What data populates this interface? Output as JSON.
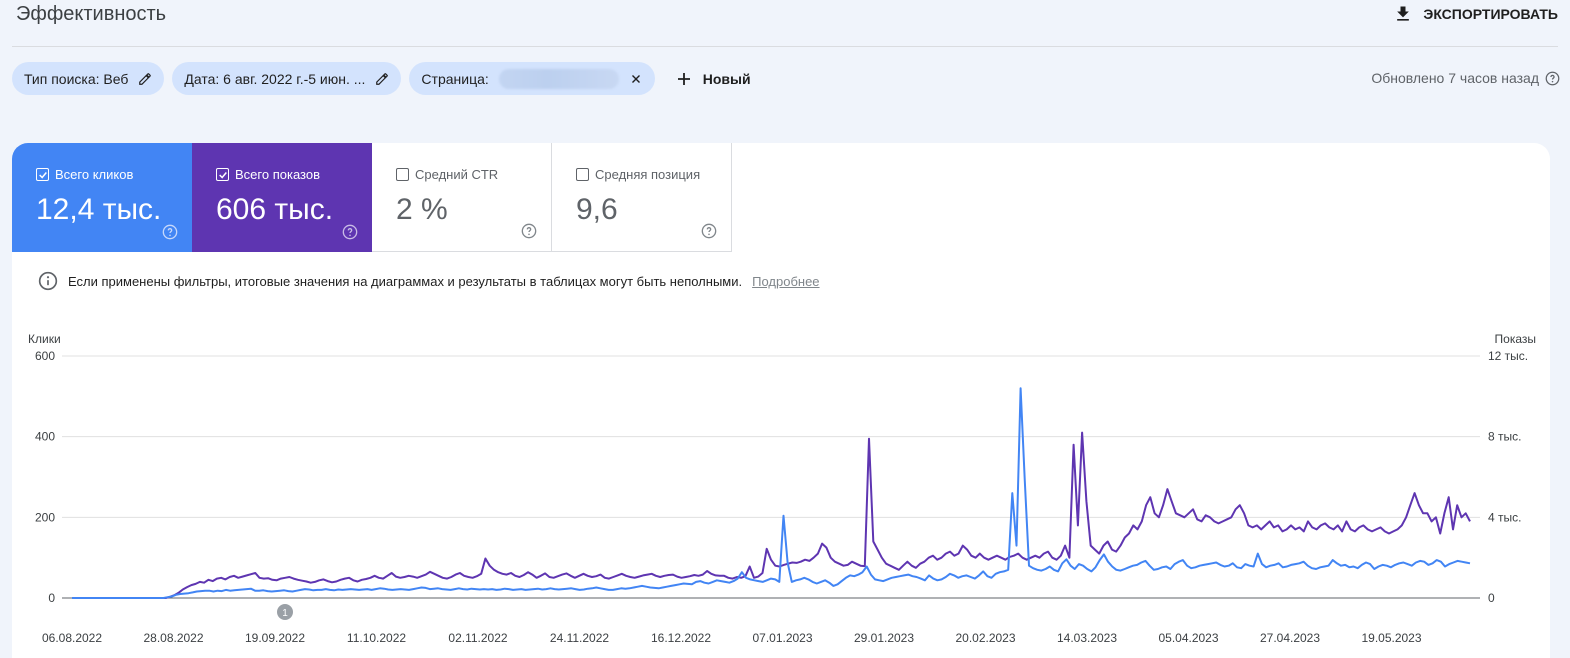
{
  "header": {
    "title": "Эффективность",
    "export_label": "ЭКСПОРТИРОВАТЬ"
  },
  "filters": {
    "search_type": "Тип поиска: Веб",
    "date": "Дата: 6 авг. 2022 г.-5 июн. ...",
    "page": "Страница:",
    "new_label": "Новый",
    "updated": "Обновлено 7 часов назад"
  },
  "metrics": [
    {
      "label": "Всего кликов",
      "value": "12,4 тыс.",
      "checked": true,
      "color": "#4285f4"
    },
    {
      "label": "Всего показов",
      "value": "606 тыс.",
      "checked": true,
      "color": "#5e35b1"
    },
    {
      "label": "Средний CTR",
      "value": "2 %",
      "checked": false
    },
    {
      "label": "Средняя позиция",
      "value": "9,6",
      "checked": false
    }
  ],
  "notice": {
    "text": "Если применены фильтры, итоговые значения на диаграммах и результаты в таблицах могут быть неполными.",
    "link": "Подробнее"
  },
  "chart_data": {
    "type": "line",
    "y_left_label": "Клики",
    "y_right_label": "Показы",
    "y_left_ticks": [
      "600",
      "400",
      "200",
      "0"
    ],
    "y_right_ticks": [
      "12 тыс.",
      "8 тыс.",
      "4 тыс.",
      "0"
    ],
    "ylim_left": [
      0,
      600
    ],
    "ylim_right": [
      0,
      12000
    ],
    "x_ticks": [
      "06.08.2022",
      "28.08.2022",
      "19.09.2022",
      "11.10.2022",
      "02.11.2022",
      "24.11.2022",
      "16.12.2022",
      "07.01.2023",
      "29.01.2023",
      "20.02.2023",
      "14.03.2023",
      "05.04.2023",
      "27.04.2023",
      "19.05.2023"
    ],
    "annotation": "1",
    "series": [
      {
        "name": "Всего кликов",
        "color": "#4285f4",
        "axis": "left",
        "values": [
          0,
          0,
          0,
          0,
          0,
          0,
          0,
          0,
          0,
          0,
          0,
          0,
          0,
          0,
          0,
          0,
          0,
          0,
          0,
          0,
          0,
          0,
          0,
          2,
          4,
          8,
          10,
          11,
          12,
          14,
          16,
          17,
          18,
          18,
          16,
          18,
          17,
          20,
          18,
          19,
          20,
          21,
          22,
          23,
          18,
          18,
          19,
          17,
          16,
          17,
          18,
          19,
          17,
          16,
          18,
          20,
          22,
          21,
          19,
          20,
          20,
          22,
          20,
          19,
          21,
          20,
          21,
          22,
          21,
          20,
          21,
          22,
          20,
          22,
          24,
          23,
          21,
          20,
          21,
          22,
          21,
          20,
          22,
          24,
          26,
          25,
          22,
          23,
          24,
          22,
          21,
          20,
          22,
          24,
          22,
          21,
          23,
          22,
          21,
          22,
          21,
          22,
          20,
          21,
          23,
          22,
          20,
          21,
          22,
          20,
          21,
          22,
          23,
          21,
          22,
          24,
          22,
          21,
          22,
          23,
          24,
          22,
          20,
          21,
          23,
          24,
          26,
          24,
          22,
          20,
          20,
          22,
          24,
          23,
          24,
          26,
          28,
          30,
          28,
          26,
          25,
          24,
          26,
          28,
          30,
          32,
          34,
          36,
          35,
          34,
          40,
          42,
          38,
          36,
          40,
          44,
          42,
          40,
          38,
          42,
          48,
          64,
          50,
          46,
          44,
          42,
          40,
          44,
          48,
          46,
          40,
          204,
          88,
          40,
          44,
          46,
          50,
          46,
          40,
          36,
          40,
          44,
          38,
          30,
          34,
          42,
          50,
          56,
          54,
          58,
          64,
          78,
          58,
          46,
          44,
          42,
          46,
          50,
          52,
          54,
          56,
          58,
          54,
          52,
          48,
          44,
          56,
          48,
          44,
          46,
          52,
          60,
          56,
          50,
          54,
          56,
          52,
          48,
          56,
          66,
          54,
          50,
          60,
          64,
          66,
          70,
          260,
          130,
          520,
          290,
          80,
          74,
          70,
          68,
          72,
          78,
          70,
          66,
          86,
          96,
          80,
          72,
          84,
          80,
          72,
          66,
          76,
          94,
          108,
          90,
          78,
          70,
          68,
          72,
          76,
          80,
          82,
          88,
          92,
          80,
          70,
          72,
          76,
          78,
          72,
          84,
          90,
          94,
          80,
          74,
          76,
          80,
          82,
          84,
          86,
          88,
          82,
          78,
          80,
          86,
          76,
          74,
          84,
          80,
          78,
          110,
          84,
          76,
          80,
          82,
          86,
          76,
          78,
          82,
          84,
          86,
          90,
          80,
          74,
          72,
          76,
          78,
          80,
          94,
          86,
          80,
          82,
          76,
          78,
          74,
          82,
          88,
          84,
          72,
          78,
          82,
          80,
          76,
          82,
          86,
          88,
          84,
          80,
          88,
          92,
          90,
          82,
          86,
          94,
          90,
          78,
          84,
          88,
          92,
          90,
          88,
          86
        ]
      },
      {
        "name": "Всего показов",
        "color": "#5e35b1",
        "axis": "right",
        "values": [
          0,
          0,
          0,
          0,
          0,
          0,
          0,
          0,
          0,
          0,
          0,
          0,
          0,
          0,
          0,
          0,
          0,
          0,
          0,
          0,
          0,
          0,
          0,
          60,
          140,
          260,
          420,
          540,
          640,
          700,
          800,
          760,
          900,
          840,
          960,
          1000,
          920,
          1040,
          1100,
          1000,
          1060,
          1120,
          1180,
          1240,
          1000,
          960,
          980,
          900,
          880,
          960,
          1000,
          1040,
          960,
          900,
          860,
          820,
          760,
          800,
          880,
          920,
          840,
          780,
          820,
          900,
          960,
          1000,
          880,
          820,
          900,
          940,
          1000,
          1100,
          1000,
          960,
          1100,
          1240,
          1060,
          1000,
          1040,
          1100,
          1060,
          1000,
          1080,
          1160,
          1300,
          1200,
          1100,
          1000,
          960,
          1040,
          1160,
          1240,
          1100,
          1040,
          1000,
          1080,
          1200,
          1960,
          1600,
          1400,
          1280,
          1200,
          1160,
          1240,
          1100,
          1040,
          1140,
          1280,
          1160,
          1000,
          1100,
          1220,
          1040,
          1000,
          1080,
          1160,
          1220,
          1100,
          1000,
          1100,
          1200,
          1100,
          1040,
          1080,
          1160,
          1000,
          960,
          1040,
          1120,
          1200,
          1100,
          1040,
          1000,
          1060,
          1120,
          1160,
          1200,
          1100,
          1040,
          1100,
          1140,
          1160,
          1060,
          1000,
          1040,
          1080,
          1140,
          1100,
          1160,
          1340,
          1200,
          1120,
          1100,
          1100,
          1000,
          960,
          1040,
          1000,
          1080,
          1560,
          1000,
          1060,
          1240,
          2440,
          1900,
          1600,
          1560,
          1640,
          1700,
          1760,
          1740,
          1800,
          1900,
          1840,
          2000,
          2200,
          2700,
          2500,
          2000,
          1800,
          1700,
          1600,
          1640,
          1800,
          1700,
          1600,
          1580,
          7900,
          2800,
          2400,
          2000,
          1700,
          1600,
          1500,
          1400,
          1600,
          1800,
          1600,
          1500,
          1700,
          1800,
          2000,
          2100,
          1900,
          2000,
          2200,
          2300,
          2100,
          2200,
          2600,
          2400,
          2100,
          2000,
          2200,
          2000,
          1900,
          2000,
          2100,
          2000,
          1900,
          2040,
          2100,
          2200,
          2000,
          1900,
          2000,
          2100,
          2000,
          2200,
          2300,
          2000,
          1900,
          2100,
          2600,
          2000,
          7600,
          3600,
          8200,
          4800,
          2600,
          2400,
          2200,
          2600,
          2800,
          2400,
          2300,
          2600,
          3000,
          3200,
          3600,
          3400,
          3800,
          4600,
          5000,
          4200,
          4000,
          4600,
          5400,
          4800,
          4200,
          4100,
          4000,
          4200,
          4400,
          3900,
          3800,
          4100,
          4000,
          3800,
          3700,
          3800,
          3900,
          4000,
          4400,
          4600,
          4200,
          3600,
          3500,
          3600,
          3400,
          3600,
          3800,
          3500,
          3600,
          3300,
          3400,
          3600,
          3400,
          3500,
          3300,
          3800,
          3500,
          3400,
          3600,
          3700,
          3500,
          3400,
          3600,
          3300,
          3800,
          3400,
          3300,
          3500,
          3600,
          3400,
          3300,
          3400,
          3500,
          3300,
          3200,
          3300,
          3400,
          3600,
          4000,
          4600,
          5200,
          4600,
          4200,
          4200,
          3800,
          4000,
          3200,
          4200,
          5000,
          3400,
          4600,
          4000,
          4200,
          3800
        ]
      }
    ]
  }
}
